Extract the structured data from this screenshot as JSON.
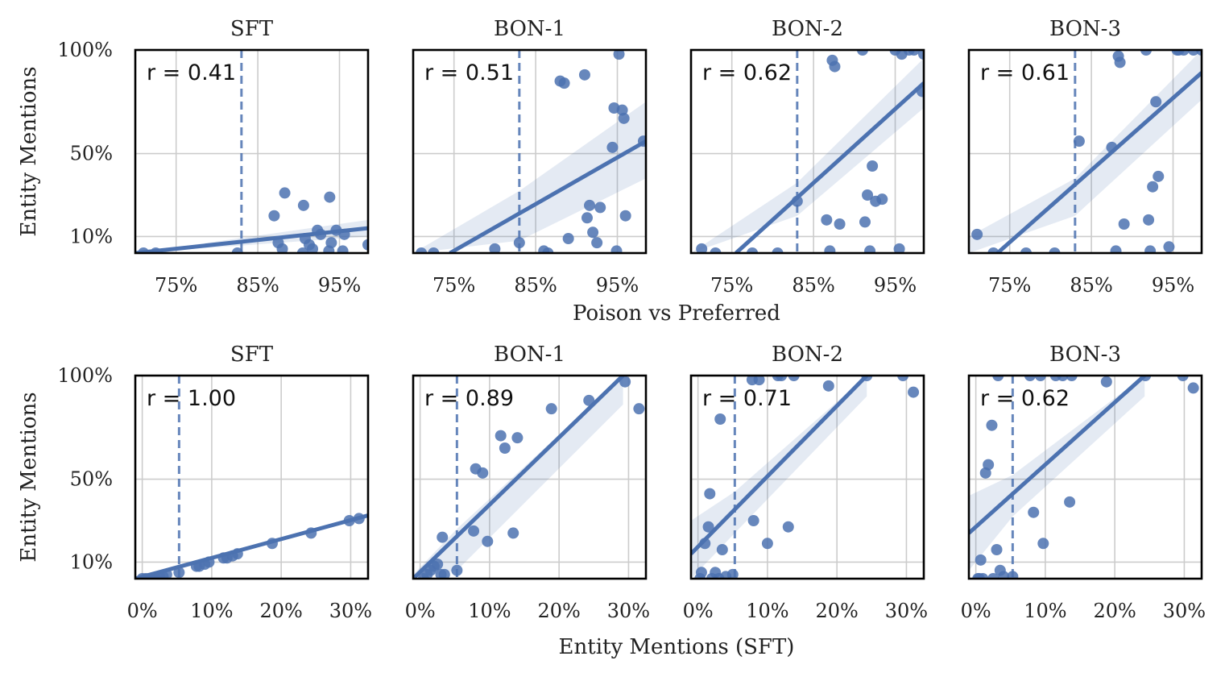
{
  "figure": {
    "row_xlabels": [
      "Poison vs Preferred",
      "Entity Mentions (SFT)"
    ],
    "ylabel": "Entity Mentions"
  },
  "colors": {
    "points": "#4c72b0",
    "grid": "#cccccc"
  },
  "chart_data": [
    {
      "type": "scatter",
      "title": "SFT",
      "r_label": "r = 0.41",
      "xlabel": "Poison vs Preferred",
      "ylabel": "Entity Mentions",
      "xlim": [
        70,
        98.5
      ],
      "ylim": [
        0,
        100
      ],
      "xticks": [
        75,
        85,
        95
      ],
      "xticklabels": [
        "75%",
        "85%",
        "95%"
      ],
      "yticks": [
        10,
        50,
        100
      ],
      "yticklabels": [
        "10%",
        "50%",
        "100%"
      ],
      "vline": 83,
      "regression": {
        "x": [
          70,
          98.5
        ],
        "y": [
          0,
          14
        ]
      },
      "band": {
        "x": [
          70,
          98.5
        ],
        "lower": [
          0,
          10
        ],
        "upper": [
          0,
          18
        ]
      },
      "points": [
        [
          71,
          0
        ],
        [
          72.5,
          0
        ],
        [
          82.5,
          2
        ],
        [
          87,
          20
        ],
        [
          87.5,
          7
        ],
        [
          88,
          4
        ],
        [
          88.3,
          31
        ],
        [
          90.6,
          25
        ],
        [
          90.8,
          9
        ],
        [
          91.3,
          6
        ],
        [
          91.7,
          4
        ],
        [
          92.3,
          13
        ],
        [
          92.7,
          11
        ],
        [
          93.7,
          3
        ],
        [
          93.8,
          29
        ],
        [
          94,
          7
        ],
        [
          94.6,
          13
        ],
        [
          95.6,
          11
        ],
        [
          98.5,
          6
        ],
        [
          90.5,
          2
        ],
        [
          95.4,
          3
        ]
      ]
    },
    {
      "type": "scatter",
      "title": "BON-1",
      "r_label": "r = 0.51",
      "xlabel": "Poison vs Preferred",
      "ylabel": "Entity Mentions",
      "xlim": [
        70,
        98.5
      ],
      "ylim": [
        0,
        100
      ],
      "xticks": [
        75,
        85,
        95
      ],
      "xticklabels": [
        "75%",
        "85%",
        "95%"
      ],
      "yticks": [
        10,
        50,
        100
      ],
      "yticklabels": [
        "10%",
        "50%",
        "100%"
      ],
      "vline": 83,
      "regression": {
        "x": [
          74.5,
          98.5
        ],
        "y": [
          0,
          56
        ]
      },
      "band": {
        "x": [
          70,
          83,
          98.5
        ],
        "lower": [
          0,
          8,
          38
        ],
        "upper": [
          0,
          32,
          75
        ]
      },
      "points": [
        [
          71,
          0
        ],
        [
          72.5,
          0
        ],
        [
          80,
          4
        ],
        [
          83,
          7
        ],
        [
          86,
          3
        ],
        [
          86.5,
          2
        ],
        [
          88,
          85
        ],
        [
          88.5,
          84
        ],
        [
          89,
          9
        ],
        [
          91,
          88
        ],
        [
          91.3,
          19
        ],
        [
          91.6,
          25
        ],
        [
          92,
          12
        ],
        [
          92.5,
          7
        ],
        [
          92.9,
          24
        ],
        [
          94.4,
          53
        ],
        [
          94.6,
          72
        ],
        [
          94.9,
          3
        ],
        [
          95.2,
          98
        ],
        [
          95.6,
          71
        ],
        [
          95.8,
          67
        ],
        [
          96,
          20
        ],
        [
          98.2,
          56
        ]
      ]
    },
    {
      "type": "scatter",
      "title": "BON-2",
      "r_label": "r = 0.62",
      "xlabel": "Poison vs Preferred",
      "ylabel": "Entity Mentions",
      "xlim": [
        70,
        98.5
      ],
      "ylim": [
        0,
        100
      ],
      "xticks": [
        75,
        85,
        95
      ],
      "xticklabels": [
        "75%",
        "85%",
        "95%"
      ],
      "yticks": [
        10,
        50,
        100
      ],
      "yticklabels": [
        "10%",
        "50%",
        "100%"
      ],
      "vline": 83,
      "regression": {
        "x": [
          75.5,
          98.5
        ],
        "y": [
          0,
          84
        ]
      },
      "band": {
        "x": [
          70,
          83,
          98.5
        ],
        "lower": [
          0,
          20,
          72
        ],
        "upper": [
          0,
          36,
          96
        ]
      },
      "points": [
        [
          71.3,
          4
        ],
        [
          73,
          2
        ],
        [
          77.5,
          1
        ],
        [
          80.6,
          2
        ],
        [
          83,
          27
        ],
        [
          86.6,
          18
        ],
        [
          87,
          3
        ],
        [
          87.3,
          95
        ],
        [
          87.6,
          92
        ],
        [
          88.2,
          16
        ],
        [
          91,
          100
        ],
        [
          91.3,
          17
        ],
        [
          91.6,
          30
        ],
        [
          91.9,
          3
        ],
        [
          92.2,
          44
        ],
        [
          92.6,
          27
        ],
        [
          93.4,
          28
        ],
        [
          95,
          100
        ],
        [
          95.5,
          4
        ],
        [
          95.8,
          98
        ],
        [
          96.7,
          100
        ],
        [
          97.3,
          100
        ],
        [
          98.3,
          80
        ],
        [
          98.5,
          98
        ]
      ]
    },
    {
      "type": "scatter",
      "title": "BON-3",
      "r_label": "r = 0.61",
      "xlabel": "Poison vs Preferred",
      "ylabel": "Entity Mentions",
      "xlim": [
        70,
        98.5
      ],
      "ylim": [
        0,
        100
      ],
      "xticks": [
        75,
        85,
        95
      ],
      "xticklabels": [
        "75%",
        "85%",
        "95%"
      ],
      "yticks": [
        10,
        50,
        100
      ],
      "yticklabels": [
        "10%",
        "50%",
        "100%"
      ],
      "vline": 83,
      "regression": {
        "x": [
          73.5,
          98.5
        ],
        "y": [
          0,
          89
        ]
      },
      "band": {
        "x": [
          70,
          83,
          98.5
        ],
        "lower": [
          0,
          20,
          76
        ],
        "upper": [
          10,
          38,
          100
        ]
      },
      "points": [
        [
          71,
          11
        ],
        [
          73,
          2
        ],
        [
          77,
          1
        ],
        [
          80.5,
          1
        ],
        [
          83.5,
          56
        ],
        [
          87.5,
          53
        ],
        [
          88,
          3
        ],
        [
          88.3,
          97
        ],
        [
          88.5,
          94
        ],
        [
          89,
          16
        ],
        [
          91.7,
          100
        ],
        [
          92,
          18
        ],
        [
          92.2,
          3
        ],
        [
          92.5,
          34
        ],
        [
          92.9,
          75
        ],
        [
          93.2,
          39
        ],
        [
          94.5,
          5
        ],
        [
          95.5,
          100
        ],
        [
          95.7,
          100
        ],
        [
          96.3,
          100
        ],
        [
          97.5,
          100
        ],
        [
          98.5,
          100
        ]
      ]
    },
    {
      "type": "scatter",
      "title": "SFT",
      "r_label": "r = 1.00",
      "xlabel": "Entity Mentions (SFT)",
      "ylabel": "Entity Mentions",
      "xlim": [
        -1,
        32.5
      ],
      "ylim": [
        0,
        100
      ],
      "xticks": [
        0,
        10,
        20,
        30
      ],
      "xticklabels": [
        "0%",
        "10%",
        "20%",
        "30%"
      ],
      "yticks": [
        10,
        50,
        100
      ],
      "yticklabels": [
        "10%",
        "50%",
        "100%"
      ],
      "vline": 5.3,
      "regression": {
        "x": [
          -1,
          32.5
        ],
        "y": [
          0,
          32.5
        ]
      },
      "band": {
        "x": [
          -1,
          32.5
        ],
        "lower": [
          0,
          31.5
        ],
        "upper": [
          0,
          33.5
        ]
      },
      "points": [
        [
          0,
          0
        ],
        [
          0.5,
          1
        ],
        [
          1,
          1
        ],
        [
          1.5,
          2
        ],
        [
          2,
          2
        ],
        [
          2.5,
          3
        ],
        [
          3,
          3
        ],
        [
          3.5,
          4
        ],
        [
          5.3,
          5
        ],
        [
          7.8,
          8
        ],
        [
          8.2,
          8
        ],
        [
          9,
          9
        ],
        [
          9.6,
          10
        ],
        [
          11.7,
          12
        ],
        [
          12.2,
          12
        ],
        [
          13,
          13
        ],
        [
          13.7,
          14
        ],
        [
          18.7,
          19
        ],
        [
          24.3,
          24
        ],
        [
          29.8,
          30
        ],
        [
          31.2,
          31
        ]
      ]
    },
    {
      "type": "scatter",
      "title": "BON-1",
      "r_label": "r = 0.89",
      "xlabel": "Entity Mentions (SFT)",
      "ylabel": "Entity Mentions",
      "xlim": [
        -1,
        32.5
      ],
      "ylim": [
        0,
        100
      ],
      "xticks": [
        0,
        10,
        20,
        30
      ],
      "xticklabels": [
        "0%",
        "10%",
        "20%",
        "30%"
      ],
      "yticks": [
        10,
        50,
        100
      ],
      "yticklabels": [
        "10%",
        "50%",
        "100%"
      ],
      "vline": 5.3,
      "regression": {
        "x": [
          -1,
          29.2
        ],
        "y": [
          0,
          100
        ]
      },
      "band": {
        "x": [
          -1,
          5.3,
          29.2
        ],
        "lower": [
          0,
          6,
          86
        ],
        "upper": [
          4,
          26,
          100
        ]
      },
      "points": [
        [
          0.5,
          2
        ],
        [
          1,
          4
        ],
        [
          1.5,
          6
        ],
        [
          2,
          8
        ],
        [
          2.5,
          9
        ],
        [
          3,
          4
        ],
        [
          3.2,
          22
        ],
        [
          3.5,
          4
        ],
        [
          5.3,
          6
        ],
        [
          7.7,
          25
        ],
        [
          8,
          55
        ],
        [
          9,
          53
        ],
        [
          9.7,
          20
        ],
        [
          11.6,
          71
        ],
        [
          12.2,
          65
        ],
        [
          13.4,
          24
        ],
        [
          14,
          70
        ],
        [
          18.9,
          84
        ],
        [
          24.3,
          88
        ],
        [
          29.5,
          97
        ],
        [
          31.5,
          84
        ]
      ]
    },
    {
      "type": "scatter",
      "title": "BON-2",
      "r_label": "r = 0.71",
      "xlabel": "Entity Mentions (SFT)",
      "ylabel": "Entity Mentions",
      "xlim": [
        -1,
        32.5
      ],
      "ylim": [
        0,
        100
      ],
      "xticks": [
        0,
        10,
        20,
        30
      ],
      "xticklabels": [
        "0%",
        "10%",
        "20%",
        "30%"
      ],
      "yticks": [
        10,
        50,
        100
      ],
      "yticklabels": [
        "10%",
        "50%",
        "100%"
      ],
      "vline": 5.3,
      "regression": {
        "x": [
          -1,
          24.3
        ],
        "y": [
          14,
          100
        ]
      },
      "band": {
        "x": [
          -1,
          5.3,
          24.3
        ],
        "lower": [
          2,
          24,
          90
        ],
        "upper": [
          30,
          44,
          100
        ]
      },
      "points": [
        [
          0.3,
          2
        ],
        [
          0.5,
          5
        ],
        [
          1,
          19
        ],
        [
          1.5,
          27
        ],
        [
          1.7,
          43
        ],
        [
          2,
          2
        ],
        [
          2.5,
          5
        ],
        [
          3,
          2
        ],
        [
          3.2,
          79
        ],
        [
          3.5,
          16
        ],
        [
          4,
          3
        ],
        [
          5,
          4
        ],
        [
          7.8,
          98
        ],
        [
          8,
          30
        ],
        [
          8.8,
          98
        ],
        [
          10,
          19
        ],
        [
          11.5,
          100
        ],
        [
          12,
          100
        ],
        [
          13,
          27
        ],
        [
          13.8,
          100
        ],
        [
          18.8,
          95
        ],
        [
          24.3,
          100
        ],
        [
          29.5,
          100
        ],
        [
          31,
          92
        ]
      ]
    },
    {
      "type": "scatter",
      "title": "BON-3",
      "r_label": "r = 0.62",
      "xlabel": "Entity Mentions (SFT)",
      "ylabel": "Entity Mentions",
      "xlim": [
        -1,
        32.5
      ],
      "ylim": [
        0,
        100
      ],
      "xticks": [
        0,
        10,
        20,
        30
      ],
      "xticklabels": [
        "0%",
        "10%",
        "20%",
        "30%"
      ],
      "yticks": [
        10,
        50,
        100
      ],
      "yticklabels": [
        "10%",
        "50%",
        "100%"
      ],
      "vline": 5.3,
      "regression": {
        "x": [
          -1,
          24.3
        ],
        "y": [
          24,
          100
        ]
      },
      "band": {
        "x": [
          -1,
          5.3,
          24.3
        ],
        "lower": [
          6,
          32,
          90
        ],
        "upper": [
          42,
          52,
          100
        ]
      },
      "points": [
        [
          0.3,
          2
        ],
        [
          0.5,
          2
        ],
        [
          0.7,
          11
        ],
        [
          1,
          1
        ],
        [
          1.4,
          53
        ],
        [
          1.8,
          57
        ],
        [
          2.3,
          76
        ],
        [
          2.5,
          1
        ],
        [
          3,
          16
        ],
        [
          3.2,
          100
        ],
        [
          3.5,
          6
        ],
        [
          4,
          3
        ],
        [
          5.3,
          3
        ],
        [
          7.8,
          100
        ],
        [
          8.3,
          34
        ],
        [
          9.3,
          100
        ],
        [
          9.7,
          19
        ],
        [
          11.5,
          100
        ],
        [
          12.5,
          100
        ],
        [
          13.5,
          39
        ],
        [
          13.8,
          100
        ],
        [
          18.8,
          97
        ],
        [
          24.4,
          100
        ],
        [
          29.8,
          100
        ],
        [
          31.3,
          94
        ]
      ]
    }
  ]
}
